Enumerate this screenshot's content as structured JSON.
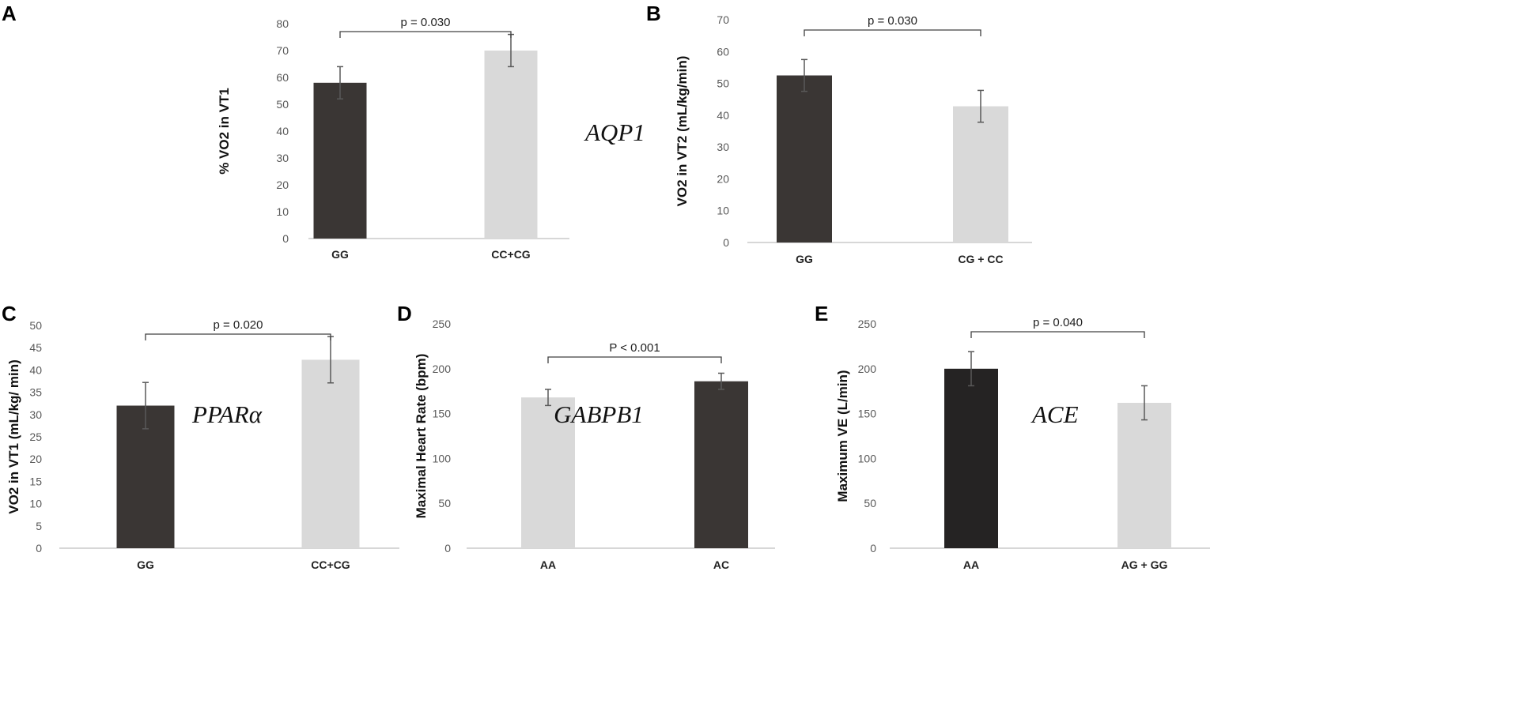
{
  "colors": {
    "dark": "#3a3634",
    "darker": "#252323",
    "light": "#d9d9d9",
    "axis": "#bfbfbf",
    "bracket": "#404040",
    "errbar": "#595959"
  },
  "chart_data": [
    {
      "panel": "A",
      "type": "bar",
      "ylabel": "% VO2 in VT1",
      "ylim": [
        0,
        80
      ],
      "yticks": [
        0,
        10,
        20,
        30,
        40,
        50,
        60,
        70,
        80
      ],
      "categories": [
        "GG",
        "CC+CG"
      ],
      "values": [
        58,
        70
      ],
      "errors": [
        6,
        6
      ],
      "bar_colors": [
        "dark",
        "light"
      ],
      "gene": "AQP1",
      "pvalue": "p = 0.030"
    },
    {
      "panel": "B",
      "type": "bar",
      "ylabel": "VO2 in  VT2 (mL/kg/min)",
      "ylim": [
        0,
        70
      ],
      "yticks": [
        0,
        10,
        20,
        30,
        40,
        50,
        60,
        70
      ],
      "categories": [
        "GG",
        "CG + CC"
      ],
      "values": [
        52.5,
        42.8
      ],
      "errors": [
        5,
        5
      ],
      "bar_colors": [
        "dark",
        "light"
      ],
      "gene": "",
      "pvalue": "p = 0.030"
    },
    {
      "panel": "C",
      "type": "bar",
      "ylabel": "VO2 in VT1 (mL/kg/ min)",
      "ylim": [
        0,
        50
      ],
      "yticks": [
        0,
        5,
        10,
        15,
        20,
        25,
        30,
        35,
        40,
        45,
        50
      ],
      "categories": [
        "GG",
        "CC+CG"
      ],
      "values": [
        32,
        42.3
      ],
      "errors": [
        5.2,
        5.2
      ],
      "bar_colors": [
        "dark",
        "light"
      ],
      "gene": "PPARα",
      "pvalue": "p = 0.020"
    },
    {
      "panel": "D",
      "type": "bar",
      "ylabel": "Maximal Heart Rate (bpm)",
      "ylim": [
        0,
        250
      ],
      "yticks": [
        0,
        50,
        100,
        150,
        200,
        250
      ],
      "categories": [
        "AA",
        "AC"
      ],
      "values": [
        168,
        186
      ],
      "errors": [
        9,
        9
      ],
      "bar_colors": [
        "light",
        "dark"
      ],
      "gene": "GABPB1",
      "pvalue": "P < 0.001"
    },
    {
      "panel": "E",
      "type": "bar",
      "ylabel": "Maximum VE (L/min)",
      "ylim": [
        0,
        250
      ],
      "yticks": [
        0,
        50,
        100,
        150,
        200,
        250
      ],
      "categories": [
        "AA",
        "AG + GG"
      ],
      "values": [
        200,
        162
      ],
      "errors": [
        19,
        19
      ],
      "bar_colors": [
        "darker",
        "light"
      ],
      "gene": "ACE",
      "pvalue": "p = 0.040"
    }
  ]
}
